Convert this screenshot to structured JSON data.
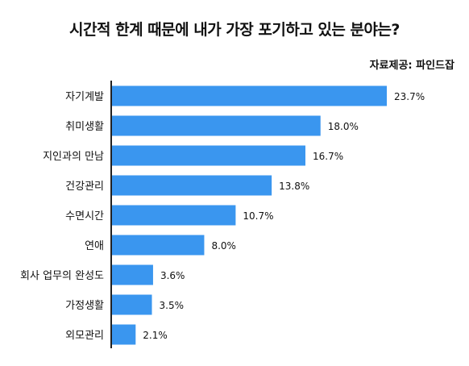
{
  "chart_data": {
    "type": "bar",
    "orientation": "horizontal",
    "title": "시간적 한계 때문에 내가 가장 포기하고 있는 분야는?",
    "source": "자료제공: 파인드잡",
    "categories": [
      "자기계발",
      "취미생활",
      "지인과의 만남",
      "건강관리",
      "수면시간",
      "연애",
      "회사 업무의 완성도",
      "가정생활",
      "외모관리"
    ],
    "values": [
      23.7,
      18.0,
      16.7,
      13.8,
      10.7,
      8.0,
      3.6,
      3.5,
      2.1
    ],
    "value_labels": [
      "23.7%",
      "18.0%",
      "16.7%",
      "13.8%",
      "10.7%",
      "8.0%",
      "3.6%",
      "3.5%",
      "2.1%"
    ],
    "xlim": [
      0,
      25
    ],
    "grid": false,
    "legend": "none"
  },
  "colors": {
    "bar": "#3a96ef",
    "axis": "#222222",
    "text": "#111111"
  }
}
